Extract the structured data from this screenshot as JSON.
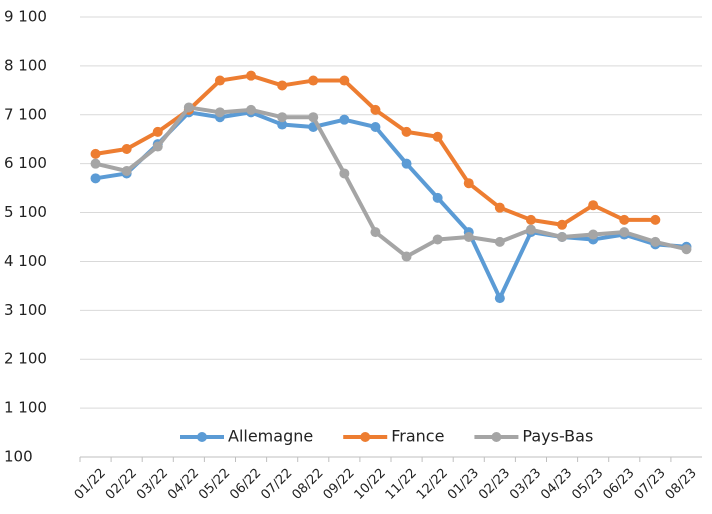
{
  "chart_data": {
    "type": "line",
    "categories": [
      "01/22",
      "02/22",
      "03/22",
      "04/22",
      "05/22",
      "06/22",
      "07/22",
      "08/22",
      "09/22",
      "10/22",
      "11/22",
      "12/22",
      "01/23",
      "02/23",
      "03/23",
      "04/23",
      "05/23",
      "06/23",
      "07/23",
      "08/23"
    ],
    "series": [
      {
        "name": "Allemagne",
        "color": "#5b9bd5",
        "values": [
          5800,
          5900,
          6500,
          7150,
          7050,
          7150,
          6900,
          6850,
          7000,
          6850,
          6100,
          5400,
          4700,
          3350,
          4700,
          4600,
          4550,
          4650,
          4450,
          4400
        ]
      },
      {
        "name": "France",
        "color": "#ed7d31",
        "values": [
          6300,
          6400,
          6750,
          7200,
          7800,
          7900,
          7700,
          7800,
          7800,
          7200,
          6750,
          6650,
          5700,
          5200,
          4950,
          4850,
          5250,
          4950,
          4950,
          null
        ]
      },
      {
        "name": "Pays-Bas",
        "color": "#a5a5a5",
        "values": [
          6100,
          5950,
          6450,
          7250,
          7150,
          7200,
          7050,
          7050,
          5900,
          4700,
          4200,
          4550,
          4600,
          4500,
          4750,
          4600,
          4650,
          4700,
          4500,
          4350
        ]
      }
    ],
    "ylim": [
      100,
      9100
    ],
    "yticks": [
      100,
      {
        "value": 1100,
        "label": "1 100"
      },
      {
        "value": 2100,
        "label": "2 100"
      },
      {
        "value": 3100,
        "label": "3 100"
      },
      {
        "value": 4100,
        "label": "4 100"
      },
      {
        "value": 5100,
        "label": "5 100"
      },
      {
        "value": 6100,
        "label": "6 100"
      },
      {
        "value": 7100,
        "label": "7 100"
      },
      {
        "value": 8100,
        "label": "8 100"
      },
      {
        "value": 9100,
        "label": "9 100"
      }
    ],
    "grid": true,
    "legend": "bottom"
  }
}
